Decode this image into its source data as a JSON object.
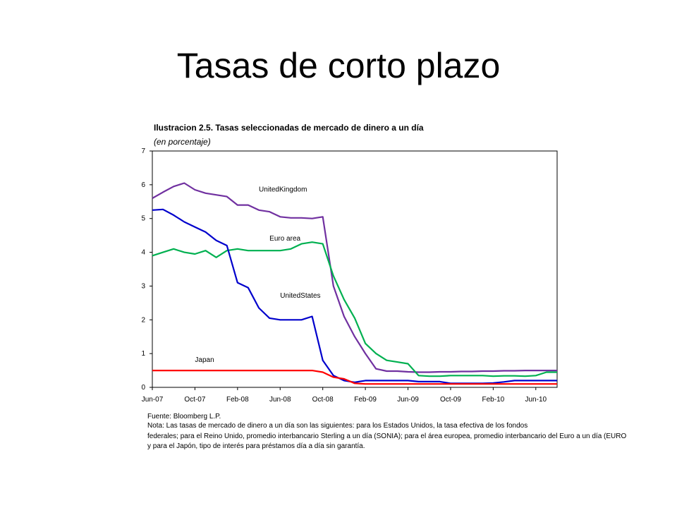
{
  "slide": {
    "title": "Tasas de corto plazo"
  },
  "chart_data": {
    "type": "line",
    "title": "Ilustracion 2.5. Tasas seleccionadas de mercado de dinero a un día",
    "subtitle": "(en porcentaje)",
    "xlabel": "",
    "ylabel": "",
    "x_ticks": [
      "Jun-07",
      "Oct-07",
      "Feb-08",
      "Jun-08",
      "Oct-08",
      "Feb-09",
      "Jun-09",
      "Oct-09",
      "Feb-10",
      "Jun-10"
    ],
    "y_ticks": [
      "0",
      "1",
      "2",
      "3",
      "4",
      "5",
      "6",
      "7"
    ],
    "ylim": [
      0,
      7
    ],
    "xlim": [
      "2007-06",
      "2010-08"
    ],
    "grid": false,
    "legend": "none",
    "series": [
      {
        "name": "UnitedKingdom",
        "color": "#7030a0",
        "label_at": [
          "2008-04",
          5.8
        ],
        "points": [
          [
            "2007-06",
            5.6
          ],
          [
            "2007-07",
            5.78
          ],
          [
            "2007-08",
            5.95
          ],
          [
            "2007-09",
            6.05
          ],
          [
            "2007-10",
            5.85
          ],
          [
            "2007-11",
            5.75
          ],
          [
            "2007-12",
            5.7
          ],
          [
            "2008-01",
            5.65
          ],
          [
            "2008-02",
            5.4
          ],
          [
            "2008-03",
            5.4
          ],
          [
            "2008-04",
            5.25
          ],
          [
            "2008-05",
            5.2
          ],
          [
            "2008-06",
            5.05
          ],
          [
            "2008-07",
            5.02
          ],
          [
            "2008-08",
            5.02
          ],
          [
            "2008-09",
            5.0
          ],
          [
            "2008-10",
            5.05
          ],
          [
            "2008-11",
            3.0
          ],
          [
            "2008-12",
            2.1
          ],
          [
            "2009-01",
            1.5
          ],
          [
            "2009-02",
            1.0
          ],
          [
            "2009-03",
            0.55
          ],
          [
            "2009-04",
            0.48
          ],
          [
            "2009-05",
            0.48
          ],
          [
            "2009-06",
            0.46
          ],
          [
            "2009-07",
            0.45
          ],
          [
            "2009-08",
            0.45
          ],
          [
            "2009-09",
            0.46
          ],
          [
            "2009-10",
            0.46
          ],
          [
            "2009-11",
            0.47
          ],
          [
            "2009-12",
            0.47
          ],
          [
            "2010-01",
            0.48
          ],
          [
            "2010-02",
            0.48
          ],
          [
            "2010-03",
            0.49
          ],
          [
            "2010-04",
            0.49
          ],
          [
            "2010-05",
            0.5
          ],
          [
            "2010-06",
            0.5
          ],
          [
            "2010-07",
            0.5
          ],
          [
            "2010-08",
            0.5
          ]
        ]
      },
      {
        "name": "Euro area",
        "color": "#00b050",
        "label_at": [
          "2008-05",
          4.35
        ],
        "points": [
          [
            "2007-06",
            3.9
          ],
          [
            "2007-07",
            4.0
          ],
          [
            "2007-08",
            4.1
          ],
          [
            "2007-09",
            4.0
          ],
          [
            "2007-10",
            3.95
          ],
          [
            "2007-11",
            4.05
          ],
          [
            "2007-12",
            3.85
          ],
          [
            "2008-01",
            4.05
          ],
          [
            "2008-02",
            4.1
          ],
          [
            "2008-03",
            4.05
          ],
          [
            "2008-04",
            4.05
          ],
          [
            "2008-05",
            4.05
          ],
          [
            "2008-06",
            4.05
          ],
          [
            "2008-07",
            4.1
          ],
          [
            "2008-08",
            4.25
          ],
          [
            "2008-09",
            4.3
          ],
          [
            "2008-10",
            4.25
          ],
          [
            "2008-11",
            3.3
          ],
          [
            "2008-12",
            2.6
          ],
          [
            "2009-01",
            2.05
          ],
          [
            "2009-02",
            1.3
          ],
          [
            "2009-03",
            1.0
          ],
          [
            "2009-04",
            0.8
          ],
          [
            "2009-05",
            0.75
          ],
          [
            "2009-06",
            0.7
          ],
          [
            "2009-07",
            0.35
          ],
          [
            "2009-08",
            0.33
          ],
          [
            "2009-09",
            0.33
          ],
          [
            "2009-10",
            0.35
          ],
          [
            "2009-11",
            0.35
          ],
          [
            "2009-12",
            0.35
          ],
          [
            "2010-01",
            0.35
          ],
          [
            "2010-02",
            0.33
          ],
          [
            "2010-03",
            0.34
          ],
          [
            "2010-04",
            0.34
          ],
          [
            "2010-05",
            0.33
          ],
          [
            "2010-06",
            0.35
          ],
          [
            "2010-07",
            0.45
          ],
          [
            "2010-08",
            0.45
          ]
        ]
      },
      {
        "name": "UnitedStates",
        "color": "#0000cc",
        "label_at": [
          "2008-06",
          2.65
        ],
        "points": [
          [
            "2007-06",
            5.25
          ],
          [
            "2007-07",
            5.27
          ],
          [
            "2007-08",
            5.1
          ],
          [
            "2007-09",
            4.9
          ],
          [
            "2007-10",
            4.75
          ],
          [
            "2007-11",
            4.6
          ],
          [
            "2007-12",
            4.35
          ],
          [
            "2008-01",
            4.2
          ],
          [
            "2008-02",
            3.1
          ],
          [
            "2008-03",
            2.95
          ],
          [
            "2008-04",
            2.35
          ],
          [
            "2008-05",
            2.05
          ],
          [
            "2008-06",
            2.0
          ],
          [
            "2008-07",
            2.0
          ],
          [
            "2008-08",
            2.0
          ],
          [
            "2008-09",
            2.1
          ],
          [
            "2008-10",
            0.8
          ],
          [
            "2008-11",
            0.35
          ],
          [
            "2008-12",
            0.2
          ],
          [
            "2009-01",
            0.15
          ],
          [
            "2009-02",
            0.2
          ],
          [
            "2009-03",
            0.2
          ],
          [
            "2009-04",
            0.2
          ],
          [
            "2009-05",
            0.2
          ],
          [
            "2009-06",
            0.2
          ],
          [
            "2009-07",
            0.17
          ],
          [
            "2009-08",
            0.17
          ],
          [
            "2009-09",
            0.17
          ],
          [
            "2009-10",
            0.12
          ],
          [
            "2009-11",
            0.12
          ],
          [
            "2009-12",
            0.12
          ],
          [
            "2010-01",
            0.12
          ],
          [
            "2010-02",
            0.13
          ],
          [
            "2010-03",
            0.16
          ],
          [
            "2010-04",
            0.2
          ],
          [
            "2010-05",
            0.2
          ],
          [
            "2010-06",
            0.2
          ],
          [
            "2010-07",
            0.2
          ],
          [
            "2010-08",
            0.2
          ]
        ]
      },
      {
        "name": "Japan",
        "color": "#ff0000",
        "label_at": [
          "2007-10",
          0.75
        ],
        "points": [
          [
            "2007-06",
            0.5
          ],
          [
            "2007-07",
            0.5
          ],
          [
            "2007-08",
            0.5
          ],
          [
            "2007-09",
            0.5
          ],
          [
            "2007-10",
            0.5
          ],
          [
            "2007-11",
            0.5
          ],
          [
            "2007-12",
            0.5
          ],
          [
            "2008-01",
            0.5
          ],
          [
            "2008-02",
            0.5
          ],
          [
            "2008-03",
            0.5
          ],
          [
            "2008-04",
            0.5
          ],
          [
            "2008-05",
            0.5
          ],
          [
            "2008-06",
            0.5
          ],
          [
            "2008-07",
            0.5
          ],
          [
            "2008-08",
            0.5
          ],
          [
            "2008-09",
            0.5
          ],
          [
            "2008-10",
            0.45
          ],
          [
            "2008-11",
            0.3
          ],
          [
            "2008-12",
            0.25
          ],
          [
            "2009-01",
            0.12
          ],
          [
            "2009-02",
            0.1
          ],
          [
            "2009-03",
            0.1
          ],
          [
            "2009-04",
            0.1
          ],
          [
            "2009-05",
            0.1
          ],
          [
            "2009-06",
            0.1
          ],
          [
            "2009-07",
            0.1
          ],
          [
            "2009-08",
            0.1
          ],
          [
            "2009-09",
            0.1
          ],
          [
            "2009-10",
            0.1
          ],
          [
            "2009-11",
            0.1
          ],
          [
            "2009-12",
            0.1
          ],
          [
            "2010-01",
            0.1
          ],
          [
            "2010-02",
            0.1
          ],
          [
            "2010-03",
            0.1
          ],
          [
            "2010-04",
            0.1
          ],
          [
            "2010-05",
            0.1
          ],
          [
            "2010-06",
            0.1
          ],
          [
            "2010-07",
            0.1
          ],
          [
            "2010-08",
            0.1
          ]
        ]
      }
    ]
  },
  "footnotes": {
    "source": "Fuente: Bloomberg L.P.",
    "note_1": "Nota: Las tasas de mercado de dinero a un día son las siguientes: para los Estados Unidos, la tasa efectiva de los fondos",
    "note_2": "federales; para el Reino Unido, promedio interbancario Sterling a un día (SONIA); para el área europea, promedio interbancario del Euro a un día (EURO",
    "note_3": "y para el Japón, tipo de interés para préstamos día a día sin garantía."
  }
}
